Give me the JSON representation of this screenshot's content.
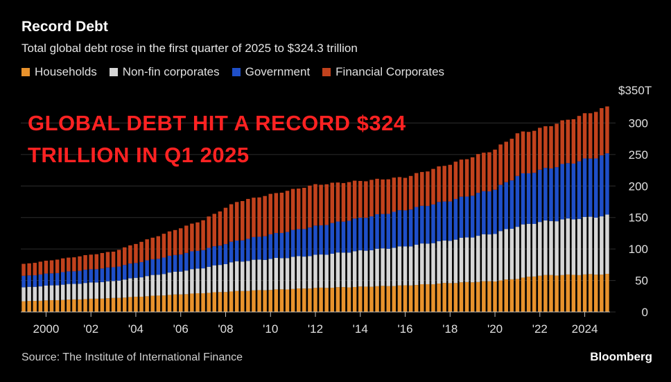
{
  "header": {
    "title": "Record Debt",
    "subtitle": "Total global debt rose in the first quarter of 2025 to $324.3 trillion"
  },
  "overlay": {
    "line1": "GLOBAL DEBT HIT A RECORD $324",
    "line2": "TRILLION IN Q1 2025"
  },
  "footer": {
    "source": "Source: The Institute of International Finance",
    "brand": "Bloomberg"
  },
  "colors": {
    "households": "#e8922c",
    "nonfin": "#d6d6d6",
    "government": "#1f4fc8",
    "financial": "#c2421d",
    "background": "#000000",
    "overlay": "#ff2222"
  },
  "chart_data": {
    "type": "bar",
    "stacked": true,
    "title": "Record Debt",
    "subtitle": "Total global debt rose in the first quarter of 2025 to $324.3 trillion",
    "unit_label": "$350T",
    "x_start": "1999-Q1",
    "x_end": "2025-Q1",
    "x_tick_labels": [
      "2000",
      "'02",
      "'04",
      "'06",
      "'08",
      "'10",
      "'12",
      "'14",
      "'16",
      "'18",
      "'20",
      "'22",
      "2024"
    ],
    "x_tick_years": [
      2000,
      2002,
      2004,
      2006,
      2008,
      2010,
      2012,
      2014,
      2016,
      2018,
      2020,
      2022,
      2024
    ],
    "y_ticks": [
      0,
      50,
      100,
      150,
      200,
      250,
      300
    ],
    "y_tick_labels": [
      "0",
      "50",
      "100",
      "150",
      "200",
      "250",
      "300"
    ],
    "ylim": [
      0,
      350
    ],
    "legend_position": "top-left",
    "grid": true,
    "series": [
      {
        "name": "Households",
        "anchors": [
          [
            1999.0,
            17
          ],
          [
            2003.0,
            22
          ],
          [
            2007.0,
            30
          ],
          [
            2008.5,
            33
          ],
          [
            2012.0,
            38
          ],
          [
            2016.0,
            42
          ],
          [
            2018.0,
            46
          ],
          [
            2020.0,
            49
          ],
          [
            2021.0,
            53
          ],
          [
            2022.0,
            58
          ],
          [
            2025.0,
            60
          ]
        ]
      },
      {
        "name": "Non-fin corporates",
        "anchors": [
          [
            1999.0,
            22
          ],
          [
            2003.0,
            27
          ],
          [
            2007.0,
            40
          ],
          [
            2008.5,
            47
          ],
          [
            2012.0,
            52
          ],
          [
            2016.0,
            62
          ],
          [
            2018.0,
            68
          ],
          [
            2020.0,
            76
          ],
          [
            2021.0,
            83
          ],
          [
            2022.0,
            85
          ],
          [
            2025.0,
            93
          ]
        ]
      },
      {
        "name": "Government",
        "anchors": [
          [
            1999.0,
            18
          ],
          [
            2003.0,
            22
          ],
          [
            2007.0,
            29
          ],
          [
            2008.5,
            33
          ],
          [
            2012.0,
            46
          ],
          [
            2016.0,
            58
          ],
          [
            2018.0,
            63
          ],
          [
            2020.0,
            70
          ],
          [
            2021.0,
            80
          ],
          [
            2022.0,
            82
          ],
          [
            2025.0,
            97
          ]
        ]
      },
      {
        "name": "Financial Corporates",
        "anchors": [
          [
            1999.0,
            19
          ],
          [
            2003.0,
            25
          ],
          [
            2007.0,
            47
          ],
          [
            2008.5,
            62
          ],
          [
            2012.0,
            66
          ],
          [
            2016.0,
            52
          ],
          [
            2018.0,
            58
          ],
          [
            2020.0,
            63
          ],
          [
            2021.0,
            67
          ],
          [
            2022.0,
            66
          ],
          [
            2025.0,
            75
          ]
        ]
      }
    ]
  }
}
